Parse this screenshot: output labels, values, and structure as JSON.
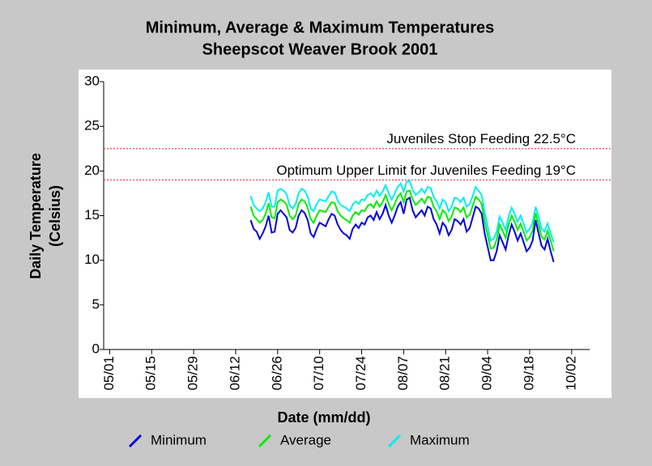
{
  "chart_data": {
    "type": "line",
    "title": "Minimum, Average & Maximum Temperatures",
    "subtitle": "Sheepscot Weaver Brook 2001",
    "xlabel": "Date (mm/dd)",
    "ylabel": [
      "Daily Temperature",
      "(Celsius)"
    ],
    "xlim": [
      "04/29",
      "10/08"
    ],
    "xticks": [
      "05/01",
      "05/15",
      "05/29",
      "06/12",
      "06/26",
      "07/10",
      "07/24",
      "08/07",
      "08/21",
      "09/04",
      "09/18",
      "10/02"
    ],
    "ylim": [
      0,
      30
    ],
    "yticks": [
      0,
      5,
      10,
      15,
      20,
      25,
      30
    ],
    "reference_lines": [
      {
        "value": 22.5,
        "label": "Juveniles Stop Feeding 22.5°C",
        "color": "#e02020"
      },
      {
        "value": 19,
        "label": "Optimum Upper Limit for Juveniles Feeding 19°C",
        "color": "#e02020"
      }
    ],
    "x": [
      "06/17",
      "06/18",
      "06/19",
      "06/20",
      "06/21",
      "06/22",
      "06/23",
      "06/24",
      "06/25",
      "06/26",
      "06/27",
      "06/28",
      "06/29",
      "06/30",
      "07/01",
      "07/02",
      "07/03",
      "07/04",
      "07/05",
      "07/06",
      "07/07",
      "07/08",
      "07/09",
      "07/10",
      "07/11",
      "07/12",
      "07/13",
      "07/14",
      "07/15",
      "07/16",
      "07/17",
      "07/18",
      "07/19",
      "07/20",
      "07/21",
      "07/22",
      "07/23",
      "07/24",
      "07/25",
      "07/26",
      "07/27",
      "07/28",
      "07/29",
      "07/30",
      "07/31",
      "08/01",
      "08/02",
      "08/03",
      "08/04",
      "08/05",
      "08/06",
      "08/07",
      "08/08",
      "08/09",
      "08/10",
      "08/11",
      "08/12",
      "08/13",
      "08/14",
      "08/15",
      "08/16",
      "08/17",
      "08/18",
      "08/19",
      "08/20",
      "08/21",
      "08/22",
      "08/23",
      "08/24",
      "08/25",
      "08/26",
      "08/27",
      "08/28",
      "08/29",
      "08/30",
      "08/31",
      "09/01",
      "09/02",
      "09/03",
      "09/04",
      "09/05",
      "09/06",
      "09/07",
      "09/08",
      "09/09",
      "09/10",
      "09/11",
      "09/12",
      "09/13",
      "09/14",
      "09/15",
      "09/16",
      "09/17",
      "09/18",
      "09/19",
      "09/20",
      "09/21",
      "09/22",
      "09/23",
      "09/24",
      "09/25",
      "09/26"
    ],
    "series": [
      {
        "name": "Minimum",
        "color": "#0000dd",
        "values": [
          14.5,
          13.5,
          13.2,
          12.4,
          13.0,
          13.8,
          15.0,
          13.1,
          13.2,
          15.2,
          15.6,
          15.2,
          14.8,
          13.4,
          13.1,
          13.6,
          15.0,
          15.6,
          15.3,
          14.5,
          13.0,
          12.6,
          13.5,
          14.2,
          14.0,
          13.8,
          14.6,
          15.2,
          15.0,
          14.0,
          13.4,
          13.0,
          12.8,
          12.4,
          13.5,
          14.0,
          13.6,
          14.2,
          14.0,
          14.8,
          15.0,
          14.5,
          15.4,
          14.6,
          15.2,
          16.2,
          15.0,
          14.2,
          15.0,
          16.0,
          16.5,
          15.2,
          16.8,
          17.0,
          15.6,
          14.8,
          15.2,
          15.6,
          15.0,
          16.0,
          15.8,
          14.6,
          14.0,
          13.0,
          14.2,
          13.8,
          12.8,
          13.4,
          14.6,
          14.4,
          14.0,
          14.6,
          13.2,
          13.6,
          14.8,
          16.0,
          15.8,
          15.2,
          13.0,
          11.5,
          10.0,
          10.0,
          11.0,
          12.8,
          12.0,
          11.2,
          12.8,
          14.0,
          13.2,
          12.2,
          13.0,
          12.0,
          11.0,
          11.4,
          12.2,
          14.5,
          13.0,
          11.6,
          11.2,
          12.4,
          11.0,
          9.8
        ]
      },
      {
        "name": "Average",
        "color": "#00ee00",
        "values": [
          16.0,
          15.0,
          14.6,
          14.2,
          14.5,
          15.2,
          16.4,
          14.8,
          14.7,
          16.5,
          16.8,
          16.6,
          16.2,
          15.0,
          14.6,
          15.0,
          16.3,
          16.8,
          16.6,
          15.9,
          14.6,
          14.2,
          15.0,
          15.6,
          15.5,
          15.4,
          16.0,
          16.5,
          16.4,
          15.5,
          15.0,
          14.7,
          14.5,
          14.2,
          15.0,
          15.4,
          15.1,
          15.6,
          15.5,
          16.1,
          16.3,
          15.9,
          16.6,
          16.0,
          16.5,
          17.3,
          16.3,
          15.6,
          16.3,
          17.1,
          17.5,
          16.5,
          17.7,
          17.8,
          16.8,
          16.2,
          16.5,
          16.9,
          16.4,
          17.1,
          17.0,
          16.0,
          15.5,
          14.6,
          15.6,
          15.3,
          14.4,
          14.9,
          15.9,
          15.8,
          15.4,
          15.9,
          14.8,
          15.1,
          16.1,
          17.1,
          16.8,
          16.3,
          14.3,
          12.8,
          11.3,
          11.4,
          12.3,
          14.0,
          13.3,
          12.5,
          14.0,
          15.0,
          14.3,
          13.4,
          14.1,
          13.2,
          12.2,
          12.6,
          13.3,
          15.3,
          14.0,
          12.6,
          12.3,
          13.3,
          12.2,
          11.0
        ]
      },
      {
        "name": "Maximum",
        "color": "#00eeee",
        "values": [
          17.2,
          16.2,
          15.8,
          15.5,
          15.8,
          16.5,
          17.6,
          16.0,
          16.0,
          17.8,
          18.0,
          17.8,
          17.4,
          16.2,
          15.8,
          16.3,
          17.5,
          18.0,
          17.8,
          17.1,
          15.8,
          15.5,
          16.3,
          16.8,
          16.7,
          16.6,
          17.2,
          17.7,
          17.6,
          16.7,
          16.2,
          16.0,
          15.8,
          15.5,
          16.2,
          16.6,
          16.3,
          16.8,
          16.7,
          17.3,
          17.5,
          17.1,
          17.8,
          17.2,
          17.7,
          18.4,
          17.5,
          16.8,
          17.5,
          18.2,
          18.6,
          17.7,
          18.8,
          18.9,
          17.9,
          17.3,
          17.6,
          18.0,
          17.5,
          18.2,
          18.1,
          17.1,
          16.6,
          15.8,
          16.8,
          16.5,
          15.5,
          16.0,
          17.0,
          16.9,
          16.5,
          17.0,
          16.0,
          16.3,
          17.2,
          18.2,
          17.8,
          17.3,
          15.4,
          13.8,
          12.2,
          12.4,
          13.2,
          14.9,
          14.2,
          13.4,
          14.9,
          15.9,
          15.2,
          14.3,
          15.0,
          14.1,
          13.1,
          13.5,
          14.2,
          16.0,
          14.9,
          13.5,
          13.2,
          14.1,
          13.0,
          12.0
        ]
      }
    ]
  }
}
